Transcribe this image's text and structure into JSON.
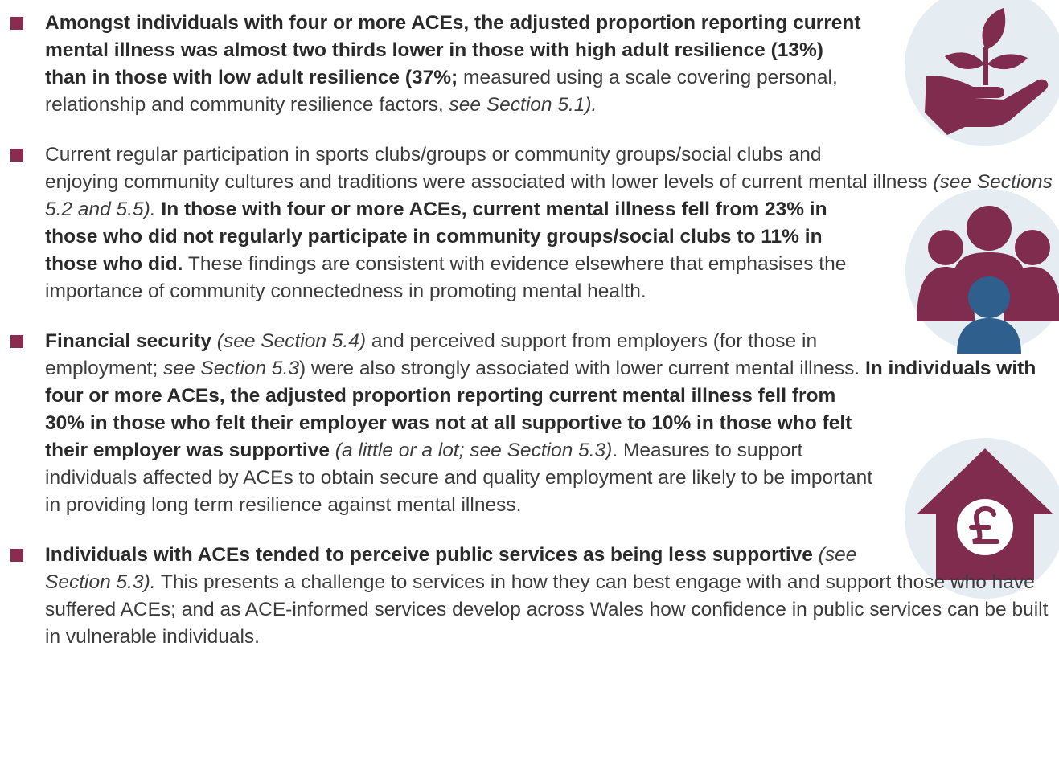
{
  "bullets": [
    [
      {
        "b": "Amongst individuals with four or more ACEs, the adjusted proportion reporting current mental illness was almost two thirds lower in those with high adult resilience (13%) than in those with low adult resilience (37%;"
      },
      {
        "t": " measured using a scale covering personal, relationship and community resilience factors, "
      },
      {
        "i": "see Section 5.1)."
      }
    ],
    [
      {
        "t": "Current regular participation in sports clubs/groups or community groups/social clubs and enjoying community cultures and traditions were associated with lower levels of current mental illness "
      },
      {
        "i": "(see Sections 5.2 and 5.5)."
      },
      {
        "b": " In those with four or more ACEs, current mental illness fell from 23% in those who did not regularly participate in community groups/social clubs to 11% in those who did."
      },
      {
        "t": " These findings are consistent with evidence elsewhere that emphasises the importance of community connectedness in promoting mental health."
      }
    ],
    [
      {
        "b": "Financial security"
      },
      {
        "i": " (see Section 5.4)"
      },
      {
        "t": " and perceived support from employers (for those in employment; "
      },
      {
        "i": "see Section 5.3"
      },
      {
        "t": ") were also strongly associated with lower current mental illness. "
      },
      {
        "b": "In individuals with four or more ACEs, the adjusted proportion reporting current mental illness fell from 30% in those who felt their employer was not at all supportive to 10% in those who felt their employer was supportive"
      },
      {
        "i": " (a little or a lot; see Section 5.3)"
      },
      {
        "t": ". Measures to support individuals affected by ACEs to obtain secure and quality employment are likely to be important in providing long term resilience against mental illness."
      }
    ],
    [
      {
        "b": "Individuals with ACEs tended to perceive public services as being less supportive"
      },
      {
        "i": " (see Section 5.3)."
      },
      {
        "t": " This presents a challenge to services in how they can best engage with and support those who have suffered ACEs; and as ACE-informed services develop across Wales how confidence in public services can be built in vulnerable individuals."
      }
    ]
  ]
}
